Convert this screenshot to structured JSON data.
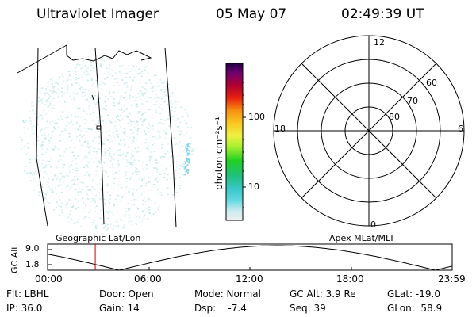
{
  "header": {
    "title": "Ultraviolet Imager",
    "date": "05 May 07",
    "time": "02:49:39 UT"
  },
  "colorbar": {
    "unit_label": "photon cm⁻²s⁻¹",
    "tick_100": "100",
    "tick_10": "10"
  },
  "polar": {
    "top": "12",
    "bottom": "0",
    "left": "18",
    "right": "6",
    "ring_60": "60",
    "ring_70": "70",
    "ring_80": "80"
  },
  "panel_labels": {
    "left": "Geographic Lat/Lon",
    "right": "Apex MLat/MLT"
  },
  "altitude_plot": {
    "ylabel": "GC Alt",
    "y_top": "9.0",
    "y_bottom": "1.8",
    "x_ticks": [
      "00:00",
      "06:00",
      "12:00",
      "18:00",
      "23:59"
    ],
    "marker_time": "02:49:39"
  },
  "info": {
    "flt": "Flt: LBHL",
    "ip": "IP: 36.0",
    "door": "Door: Open",
    "gain": "Gain: 14",
    "mode": "Mode: Normal",
    "dsp": "Dsp:    -7.4",
    "gcalt": "GC Alt: 3.9 Re",
    "seq": "Seq: 39",
    "glat": "GLat: -19.0",
    "glon": "GLon:  58.9"
  },
  "colors": {
    "speckle": "#bfe6e8",
    "marker": "#d00000"
  }
}
